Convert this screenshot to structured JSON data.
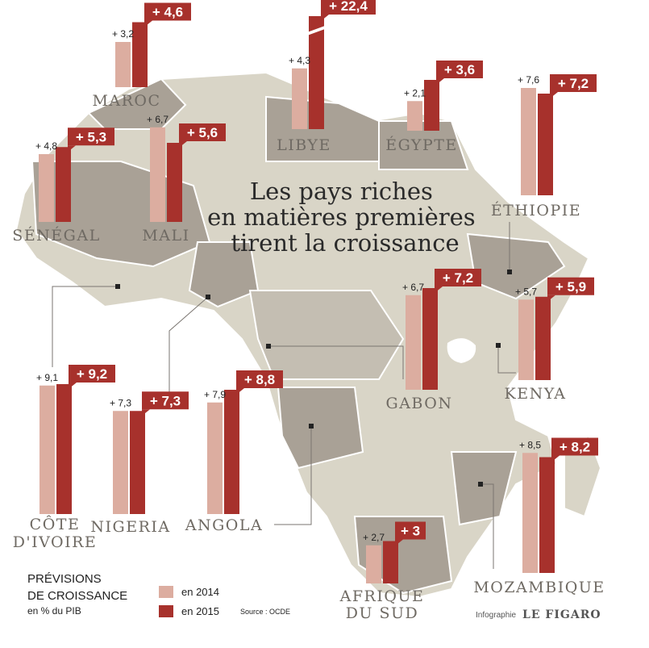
{
  "chart_data": {
    "type": "bar",
    "title": "Les pays riches en matières premières tirent la croissance",
    "title_lines": [
      "Les pays riches",
      "en matières premières",
      "tirent la croissance"
    ],
    "series": [
      {
        "name": "en 2014",
        "color": "#dcada0"
      },
      {
        "name": "en 2015",
        "color": "#a7312c"
      }
    ],
    "countries": [
      {
        "name": "MAROC",
        "lines": [
          "MAROC"
        ],
        "v2014": 3.2,
        "v2015": 4.6,
        "l2014": "+ 3,2",
        "l2015": "+ 4,6"
      },
      {
        "name": "LIBYE",
        "lines": [
          "LIBYE"
        ],
        "v2014": 4.3,
        "v2015": 22.4,
        "l2014": "+ 4,3",
        "l2015": "+ 22,4",
        "broken_axis": true
      },
      {
        "name": "ÉGYPTE",
        "lines": [
          "ÉGYPTE"
        ],
        "v2014": 2.1,
        "v2015": 3.6,
        "l2014": "+ 2,1",
        "l2015": "+ 3,6"
      },
      {
        "name": "ÉTHIOPIE",
        "lines": [
          "ÉTHIOPIE"
        ],
        "v2014": 7.6,
        "v2015": 7.2,
        "l2014": "+ 7,6",
        "l2015": "+ 7,2"
      },
      {
        "name": "SÉNÉGAL",
        "lines": [
          "SÉNÉGAL"
        ],
        "v2014": 4.8,
        "v2015": 5.3,
        "l2014": "+ 4,8",
        "l2015": "+ 5,3"
      },
      {
        "name": "MALI",
        "lines": [
          "MALI"
        ],
        "v2014": 6.7,
        "v2015": 5.6,
        "l2014": "+ 6,7",
        "l2015": "+ 5,6"
      },
      {
        "name": "GABON",
        "lines": [
          "GABON"
        ],
        "v2014": 6.7,
        "v2015": 7.2,
        "l2014": "+ 6,7",
        "l2015": "+ 7,2"
      },
      {
        "name": "KENYA",
        "lines": [
          "KENYA"
        ],
        "v2014": 5.7,
        "v2015": 5.9,
        "l2014": "+ 5,7",
        "l2015": "+ 5,9"
      },
      {
        "name": "CÔTE D'IVOIRE",
        "lines": [
          "CÔTE",
          "D'IVOIRE"
        ],
        "v2014": 9.1,
        "v2015": 9.2,
        "l2014": "+ 9,1",
        "l2015": "+ 9,2"
      },
      {
        "name": "NIGERIA",
        "lines": [
          "NIGERIA"
        ],
        "v2014": 7.3,
        "v2015": 7.3,
        "l2014": "+ 7,3",
        "l2015": "+ 7,3"
      },
      {
        "name": "ANGOLA",
        "lines": [
          "ANGOLA"
        ],
        "v2014": 7.9,
        "v2015": 8.8,
        "l2014": "+ 7,9",
        "l2015": "+ 8,8"
      },
      {
        "name": "MOZAMBIQUE",
        "lines": [
          "MOZAMBIQUE"
        ],
        "v2014": 8.5,
        "v2015": 8.2,
        "l2014": "+ 8,5",
        "l2015": "+ 8,2"
      },
      {
        "name": "AFRIQUE DU SUD",
        "lines": [
          "AFRIQUE",
          "DU SUD"
        ],
        "v2014": 2.7,
        "v2015": 3.0,
        "l2014": "+ 2,7",
        "l2015": "+ 3"
      }
    ],
    "legend": {
      "title_lines": [
        "PRÉVISIONS",
        "DE CROISSANCE"
      ],
      "subtitle": "en % du PIB",
      "placement": "bottom-left"
    },
    "source": "Source : OCDE",
    "credit": {
      "label": "Infographie",
      "brand": "LE FIGARO"
    }
  }
}
